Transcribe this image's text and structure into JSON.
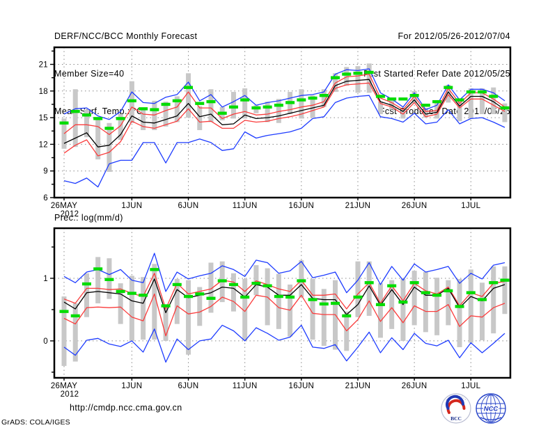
{
  "header": {
    "title": "DERF/NCC/BCC Monthly Forecast",
    "member_size": "Member Size=40",
    "temp_label": "Mean Surf. Temp.: °C",
    "for_range": "For 2012/05/26-2012/07/04",
    "refer_date": "Fcst Started Refer Date 2012/05/25",
    "produced_date": "Fcst Produced Date 2012/05/26"
  },
  "panel2_label": "Prec.: log(mm/d)",
  "footer": {
    "url": "http://cmdp.ncc.cma.gov.cn",
    "grads_credit": "GrADS: COLA/IGES",
    "logos": [
      {
        "label": "BCC"
      },
      {
        "label": "NCC"
      }
    ]
  },
  "colors": {
    "blue": "#1e3cff",
    "red": "#fa3c3c",
    "black": "#000000",
    "green": "#00dc00",
    "bar": "#c8c8c8"
  },
  "chart_data": [
    {
      "type": "line",
      "name": "temperature",
      "title": "Mean Surf. Temp.: °C",
      "xlabel": "",
      "ylabel": "°C",
      "grid": true,
      "legend": "none",
      "ylim": [
        6,
        22.92
      ],
      "yticks": [
        6,
        9,
        12,
        15,
        18,
        21
      ],
      "yminor": 1.5,
      "x_start_date": "2012/05/26",
      "x_end_date": "2012/07/04",
      "x_ticks": [
        {
          "day": 0,
          "label": "26MAY",
          "sub": "2012"
        },
        {
          "day": 6,
          "label": "1JUN"
        },
        {
          "day": 11,
          "label": "6JUN"
        },
        {
          "day": 16,
          "label": "11JUN"
        },
        {
          "day": 21,
          "label": "16JUN"
        },
        {
          "day": 26,
          "label": "21JUN"
        },
        {
          "day": 31,
          "label": "26JUN"
        },
        {
          "day": 36,
          "label": "1JUL"
        }
      ],
      "series": [
        {
          "name": "blue-upper-member-max",
          "color": "blue",
          "values": [
            15.4,
            16.0,
            16.1,
            15.2,
            14.8,
            15.7,
            17.9,
            16.7,
            16.6,
            17.3,
            17.6,
            19.0,
            16.9,
            17.6,
            16.2,
            16.8,
            17.5,
            16.4,
            16.7,
            16.9,
            17.2,
            17.5,
            17.6,
            17.9,
            19.9,
            20.4,
            20.3,
            20.5,
            17.8,
            17.1,
            16.2,
            17.8,
            15.9,
            16.4,
            18.7,
            17.0,
            18.2,
            18.2,
            17.8,
            16.9
          ]
        },
        {
          "name": "blue-lower-member-min",
          "color": "blue",
          "values": [
            7.9,
            7.6,
            8.2,
            7.2,
            9.8,
            10.2,
            10.2,
            12.2,
            12.2,
            9.9,
            12.2,
            12.2,
            12.6,
            12.2,
            11.3,
            11.5,
            13.4,
            12.7,
            13.0,
            13.2,
            13.4,
            13.8,
            14.9,
            15.1,
            16.7,
            17.2,
            17.4,
            17.5,
            15.1,
            14.9,
            14.5,
            15.5,
            14.3,
            14.5,
            15.9,
            14.3,
            14.9,
            15.0,
            14.5,
            13.9
          ]
        },
        {
          "name": "red-upper-bound",
          "color": "red",
          "values": [
            13.2,
            14.2,
            14.2,
            14.0,
            13.1,
            14.1,
            16.2,
            15.4,
            15.3,
            15.8,
            16.2,
            17.9,
            16.1,
            16.1,
            14.9,
            15.4,
            15.7,
            15.3,
            15.4,
            15.7,
            15.9,
            16.2,
            16.4,
            16.8,
            18.9,
            19.6,
            19.7,
            19.9,
            17.2,
            16.7,
            15.9,
            17.4,
            15.7,
            15.8,
            18.3,
            16.6,
            17.8,
            17.8,
            17.1,
            16.2
          ]
        },
        {
          "name": "red-lower-bound",
          "color": "red",
          "values": [
            11.0,
            11.9,
            12.5,
            10.7,
            11.1,
            12.3,
            14.6,
            14.0,
            13.8,
            14.2,
            14.6,
            16.0,
            14.5,
            14.6,
            13.8,
            13.8,
            14.7,
            14.5,
            14.6,
            14.9,
            15.1,
            15.4,
            15.8,
            16.2,
            18.3,
            18.7,
            18.8,
            18.9,
            16.6,
            16.2,
            15.4,
            16.7,
            15.1,
            15.4,
            17.6,
            16.1,
            17.1,
            17.1,
            16.4,
            15.7
          ]
        },
        {
          "name": "black-ensemble-mean",
          "color": "black",
          "values": [
            12.1,
            12.7,
            13.3,
            11.7,
            11.9,
            13.1,
            15.2,
            14.5,
            14.4,
            14.8,
            15.2,
            16.6,
            15.1,
            15.4,
            14.2,
            14.3,
            15.3,
            14.9,
            15.0,
            15.2,
            15.5,
            15.8,
            16.1,
            16.4,
            18.6,
            19.1,
            19.2,
            19.3,
            16.8,
            16.4,
            15.7,
            17.0,
            15.4,
            15.6,
            17.9,
            16.3,
            17.4,
            17.4,
            16.8,
            15.9
          ]
        }
      ],
      "markers": {
        "name": "green-dash-marker",
        "color": "green",
        "values": [
          14.4,
          15.7,
          15.3,
          14.9,
          13.8,
          14.9,
          16.9,
          16.0,
          15.9,
          16.5,
          16.9,
          18.4,
          16.6,
          16.8,
          15.5,
          16.2,
          17.0,
          16.1,
          16.2,
          16.4,
          16.7,
          17.0,
          17.2,
          17.5,
          19.5,
          19.9,
          20.0,
          20.1,
          17.4,
          17.1,
          17.1,
          17.5,
          16.4,
          16.8,
          18.4,
          17.0,
          17.9,
          17.9,
          17.4,
          16.1
        ]
      },
      "bars": {
        "name": "gray-spread-bar",
        "hi": [
          14.9,
          18.2,
          15.9,
          14.9,
          14.4,
          15.4,
          19.1,
          15.9,
          16.9,
          16.8,
          17.4,
          20.0,
          16.3,
          18.2,
          16.2,
          17.9,
          18.3,
          16.4,
          16.8,
          17.1,
          17.9,
          18.2,
          17.5,
          18.2,
          20.0,
          20.7,
          20.8,
          21.1,
          16.8,
          17.2,
          16.0,
          18.0,
          16.1,
          16.8,
          18.7,
          17.1,
          18.3,
          18.3,
          18.4,
          16.6
        ],
        "lo": [
          11.5,
          11.7,
          12.8,
          10.3,
          8.9,
          12.5,
          14.4,
          13.6,
          13.6,
          14.0,
          14.5,
          15.0,
          13.6,
          14.5,
          14.7,
          14.9,
          14.9,
          15.5,
          14.5,
          14.4,
          15.4,
          14.9,
          15.0,
          16.2,
          17.9,
          18.6,
          17.8,
          17.8,
          15.4,
          15.9,
          14.9,
          16.6,
          15.0,
          14.9,
          16.7,
          14.6,
          14.9,
          15.4,
          15.4,
          14.5
        ]
      }
    },
    {
      "type": "line",
      "name": "precipitation",
      "title": "Prec.: log(mm/d)",
      "xlabel": "",
      "ylabel": "log(mm/d)",
      "grid": true,
      "legend": "none",
      "ylim": [
        -0.59,
        1.8
      ],
      "yticks": [
        0,
        1
      ],
      "yminor": 0.5,
      "x_start_date": "2012/05/26",
      "x_end_date": "2012/07/04",
      "x_ticks": [
        {
          "day": 0,
          "label": "26MAY",
          "sub": "2012"
        },
        {
          "day": 6,
          "label": "1JUN"
        },
        {
          "day": 11,
          "label": "6JUN"
        },
        {
          "day": 16,
          "label": "11JUN"
        },
        {
          "day": 21,
          "label": "16JUN"
        },
        {
          "day": 26,
          "label": "21JUN"
        },
        {
          "day": 31,
          "label": "26JUN"
        },
        {
          "day": 36,
          "label": "1JUL"
        }
      ],
      "series": [
        {
          "name": "blue-upper-member-max",
          "color": "blue",
          "values": [
            1.03,
            0.93,
            1.1,
            1.14,
            1.06,
            1.14,
            0.97,
            0.93,
            1.4,
            0.79,
            1.1,
            0.99,
            1.04,
            1.08,
            1.2,
            1.14,
            1.03,
            1.29,
            1.25,
            1.08,
            1.12,
            1.27,
            1.01,
            1.05,
            1.1,
            0.77,
            0.97,
            1.25,
            0.9,
            1.19,
            0.97,
            1.23,
            1.1,
            1.14,
            1.19,
            0.92,
            1.08,
            0.99,
            1.21,
            1.25
          ]
        },
        {
          "name": "blue-lower-member-min",
          "color": "blue",
          "values": [
            -0.1,
            -0.23,
            0.01,
            0.04,
            -0.05,
            -0.09,
            0.0,
            -0.18,
            0.19,
            -0.34,
            0.03,
            -0.14,
            0.0,
            0.03,
            0.25,
            0.16,
            0.0,
            0.21,
            0.12,
            0.01,
            0.06,
            0.25,
            -0.1,
            -0.12,
            -0.06,
            -0.32,
            -0.1,
            0.14,
            -0.19,
            0.05,
            -0.14,
            0.12,
            -0.04,
            -0.08,
            0.01,
            -0.27,
            -0.03,
            -0.19,
            -0.04,
            0.12
          ]
        },
        {
          "name": "red-upper-bound",
          "color": "red",
          "values": [
            0.67,
            0.6,
            0.84,
            0.84,
            0.82,
            0.83,
            0.76,
            0.71,
            1.08,
            0.51,
            0.92,
            0.75,
            0.79,
            0.83,
            0.97,
            0.94,
            0.79,
            0.96,
            0.9,
            0.83,
            0.79,
            0.97,
            0.73,
            0.73,
            0.75,
            0.51,
            0.75,
            0.93,
            0.6,
            0.88,
            0.64,
            0.92,
            0.8,
            0.75,
            0.86,
            0.56,
            0.77,
            0.71,
            0.92,
            0.95
          ]
        },
        {
          "name": "red-lower-bound",
          "color": "red",
          "values": [
            0.36,
            0.27,
            0.53,
            0.54,
            0.53,
            0.54,
            0.38,
            0.32,
            0.75,
            0.08,
            0.56,
            0.43,
            0.46,
            0.55,
            0.7,
            0.63,
            0.47,
            0.73,
            0.7,
            0.53,
            0.49,
            0.73,
            0.44,
            0.42,
            0.42,
            0.16,
            0.34,
            0.64,
            0.31,
            0.53,
            0.29,
            0.56,
            0.47,
            0.47,
            0.58,
            0.23,
            0.4,
            0.38,
            0.53,
            0.6
          ]
        },
        {
          "name": "black-ensemble-mean",
          "color": "black",
          "values": [
            0.62,
            0.51,
            0.77,
            0.79,
            0.77,
            0.75,
            0.64,
            0.6,
            0.99,
            0.45,
            0.82,
            0.69,
            0.73,
            0.77,
            0.86,
            0.84,
            0.7,
            0.9,
            0.86,
            0.73,
            0.73,
            0.9,
            0.68,
            0.66,
            0.66,
            0.42,
            0.58,
            0.88,
            0.57,
            0.82,
            0.58,
            0.86,
            0.73,
            0.73,
            0.84,
            0.53,
            0.71,
            0.64,
            0.84,
            0.9
          ]
        }
      ],
      "markers": {
        "name": "green-dash-marker",
        "color": "green",
        "values": [
          0.47,
          0.4,
          0.91,
          1.15,
          0.98,
          0.79,
          0.76,
          0.73,
          1.14,
          0.56,
          0.9,
          0.71,
          0.75,
          0.68,
          0.96,
          0.9,
          0.7,
          0.92,
          0.88,
          0.71,
          0.7,
          0.96,
          0.66,
          0.59,
          0.6,
          0.4,
          0.7,
          0.93,
          0.58,
          0.88,
          0.62,
          0.93,
          0.77,
          0.73,
          0.8,
          0.55,
          0.77,
          0.66,
          0.93,
          0.97
        ]
      },
      "bars": {
        "name": "gray-spread-bar",
        "hi": [
          0.71,
          0.6,
          1.08,
          1.34,
          1.32,
          0.92,
          1.04,
          1.02,
          1.23,
          0.58,
          0.99,
          0.97,
          0.86,
          1.25,
          1.27,
          1.08,
          0.99,
          1.21,
          1.16,
          1.07,
          0.9,
          1.29,
          0.99,
          0.83,
          0.97,
          0.47,
          1.27,
          1.27,
          0.92,
          0.97,
          0.99,
          1.12,
          1.1,
          1.01,
          0.97,
          0.99,
          1.14,
          0.93,
          1.19,
          1.19
        ],
        "lo": [
          -0.4,
          -0.33,
          0.38,
          0.6,
          0.67,
          0.27,
          0.0,
          0.02,
          0.02,
          0.0,
          0.27,
          -0.22,
          0.24,
          0.45,
          0.62,
          0.47,
          0.01,
          0.73,
          0.25,
          0.19,
          0.07,
          0.7,
          0.02,
          -0.08,
          -0.14,
          -0.16,
          0.38,
          0.4,
          0.05,
          0.19,
          0.0,
          0.25,
          0.14,
          0.09,
          0.25,
          -0.1,
          -0.03,
          0.01,
          0.12,
          0.43
        ]
      }
    }
  ]
}
